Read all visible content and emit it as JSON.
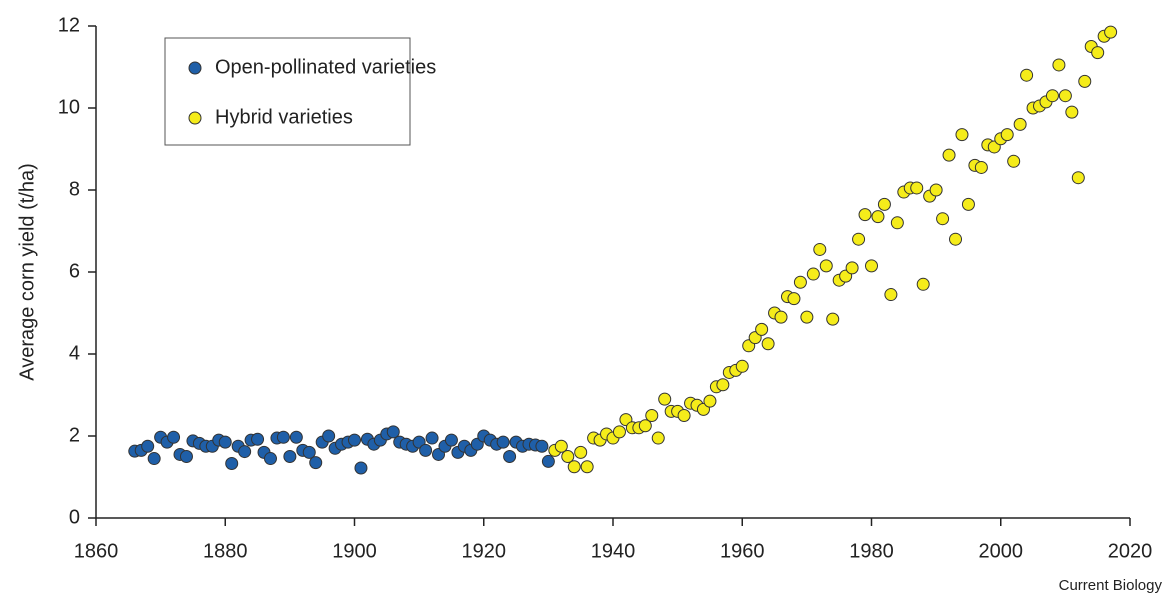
{
  "chart_data": {
    "type": "scatter",
    "ylabel": "Average corn yield (t/ha)",
    "source": "Current Biology",
    "xlim": [
      1860,
      2020
    ],
    "xticks": [
      1860,
      1880,
      1900,
      1920,
      1940,
      1960,
      1980,
      2000,
      2020
    ],
    "ylim": [
      0,
      12
    ],
    "yticks": [
      0,
      2,
      4,
      6,
      8,
      10,
      12
    ],
    "legend": "upper left",
    "series": [
      {
        "name": "Open-pollinated varieties",
        "color": "#1f5fa8",
        "x": [
          1866,
          1867,
          1868,
          1869,
          1870,
          1871,
          1872,
          1873,
          1874,
          1875,
          1876,
          1877,
          1878,
          1879,
          1880,
          1881,
          1882,
          1883,
          1884,
          1885,
          1886,
          1887,
          1888,
          1889,
          1890,
          1891,
          1892,
          1893,
          1894,
          1895,
          1896,
          1897,
          1898,
          1899,
          1900,
          1901,
          1902,
          1903,
          1904,
          1905,
          1906,
          1907,
          1908,
          1909,
          1910,
          1911,
          1912,
          1913,
          1914,
          1915,
          1916,
          1917,
          1918,
          1919,
          1920,
          1921,
          1922,
          1923,
          1924,
          1925,
          1926,
          1927,
          1928,
          1929,
          1930
        ],
        "values": [
          1.63,
          1.65,
          1.75,
          1.45,
          1.97,
          1.85,
          1.97,
          1.55,
          1.5,
          1.88,
          1.82,
          1.75,
          1.75,
          1.9,
          1.85,
          1.33,
          1.75,
          1.62,
          1.9,
          1.92,
          1.6,
          1.45,
          1.95,
          1.97,
          1.5,
          1.97,
          1.65,
          1.6,
          1.35,
          1.85,
          2.0,
          1.7,
          1.8,
          1.85,
          1.9,
          1.22,
          1.92,
          1.8,
          1.9,
          2.05,
          2.1,
          1.85,
          1.8,
          1.75,
          1.85,
          1.65,
          1.95,
          1.55,
          1.75,
          1.9,
          1.6,
          1.75,
          1.65,
          1.8,
          2.0,
          1.9,
          1.8,
          1.85,
          1.5,
          1.85,
          1.75,
          1.8,
          1.78,
          1.75,
          1.38
        ]
      },
      {
        "name": "Hybrid varieties",
        "color": "#f5ec1a",
        "x": [
          1931,
          1932,
          1933,
          1934,
          1935,
          1936,
          1937,
          1938,
          1939,
          1940,
          1941,
          1942,
          1943,
          1944,
          1945,
          1946,
          1947,
          1948,
          1949,
          1950,
          1951,
          1952,
          1953,
          1954,
          1955,
          1956,
          1957,
          1958,
          1959,
          1960,
          1961,
          1962,
          1963,
          1964,
          1965,
          1966,
          1967,
          1968,
          1969,
          1970,
          1971,
          1972,
          1973,
          1974,
          1975,
          1976,
          1977,
          1978,
          1979,
          1980,
          1981,
          1982,
          1983,
          1984,
          1985,
          1986,
          1987,
          1988,
          1989,
          1990,
          1991,
          1992,
          1993,
          1994,
          1995,
          1996,
          1997,
          1998,
          1999,
          2000,
          2001,
          2002,
          2003,
          2004,
          2005,
          2006,
          2007,
          2008,
          2009,
          2010,
          2011,
          2012,
          2013,
          2014,
          2015,
          2016,
          2017
        ],
        "values": [
          1.65,
          1.75,
          1.5,
          1.25,
          1.6,
          1.25,
          1.95,
          1.9,
          2.05,
          1.95,
          2.1,
          2.4,
          2.2,
          2.2,
          2.25,
          2.5,
          1.95,
          2.9,
          2.6,
          2.6,
          2.5,
          2.8,
          2.75,
          2.65,
          2.85,
          3.2,
          3.25,
          3.55,
          3.6,
          3.7,
          4.2,
          4.4,
          4.6,
          4.25,
          5.0,
          4.9,
          5.4,
          5.35,
          5.75,
          4.9,
          5.95,
          6.55,
          6.15,
          4.85,
          5.8,
          5.9,
          6.1,
          6.8,
          7.4,
          6.15,
          7.35,
          7.65,
          5.45,
          7.2,
          7.95,
          8.05,
          8.05,
          5.7,
          7.85,
          8.0,
          7.3,
          8.85,
          6.8,
          9.35,
          7.65,
          8.6,
          8.55,
          9.1,
          9.05,
          9.25,
          9.35,
          8.7,
          9.6,
          10.8,
          10.0,
          10.05,
          10.15,
          10.3,
          11.05,
          10.3,
          9.9,
          8.3,
          10.65,
          11.5,
          11.35,
          11.75,
          11.85
        ]
      }
    ]
  }
}
